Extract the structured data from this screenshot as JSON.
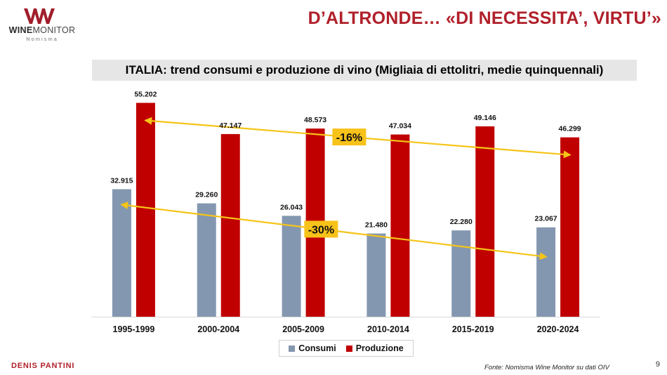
{
  "header": {
    "title": "D’ALTRONDE… «DI NECESSITA’, VIRTU’»"
  },
  "logo": {
    "name_bold": "WINE",
    "name_regular": "MONITOR",
    "subtitle": "Nomisma",
    "color": "#a11d2b"
  },
  "footer": {
    "author": "DENIS PANTINI",
    "source": "Fonte: Nomisma Wine Monitor su dati OIV",
    "page_number": "9"
  },
  "colors": {
    "accent": "#b0202a",
    "consumi": "#8497b0",
    "produzione": "#c00000",
    "arrow": "#f5c518",
    "badge": "#f7c21a"
  },
  "chart_data": {
    "type": "bar",
    "title": "ITALIA: trend consumi e produzione di vino (Migliaia di ettolitri, medie quinquennali)",
    "categories": [
      "1995-1999",
      "2000-2004",
      "2005-2009",
      "2010-2014",
      "2015-2019",
      "2020-2024"
    ],
    "series": [
      {
        "name": "Consumi",
        "values": [
          32915,
          29260,
          26043,
          21480,
          22280,
          23067
        ],
        "labels": [
          "32.915",
          "29.260",
          "26.043",
          "21.480",
          "22.280",
          "23.067"
        ]
      },
      {
        "name": "Produzione",
        "values": [
          55202,
          47147,
          48573,
          47034,
          49146,
          46299
        ],
        "labels": [
          "55.202",
          "47.147",
          "48.573",
          "47.034",
          "49.146",
          "46.299"
        ]
      }
    ],
    "ylim": [
      0,
      60000
    ],
    "grid": false,
    "legend": "bottom-center",
    "annotations": [
      {
        "series": "Produzione",
        "text": "-16%",
        "from_category": "1995-1999",
        "to_category": "2020-2024"
      },
      {
        "series": "Consumi",
        "text": "-30%",
        "from_category": "1995-1999",
        "to_category": "2020-2024"
      }
    ]
  }
}
